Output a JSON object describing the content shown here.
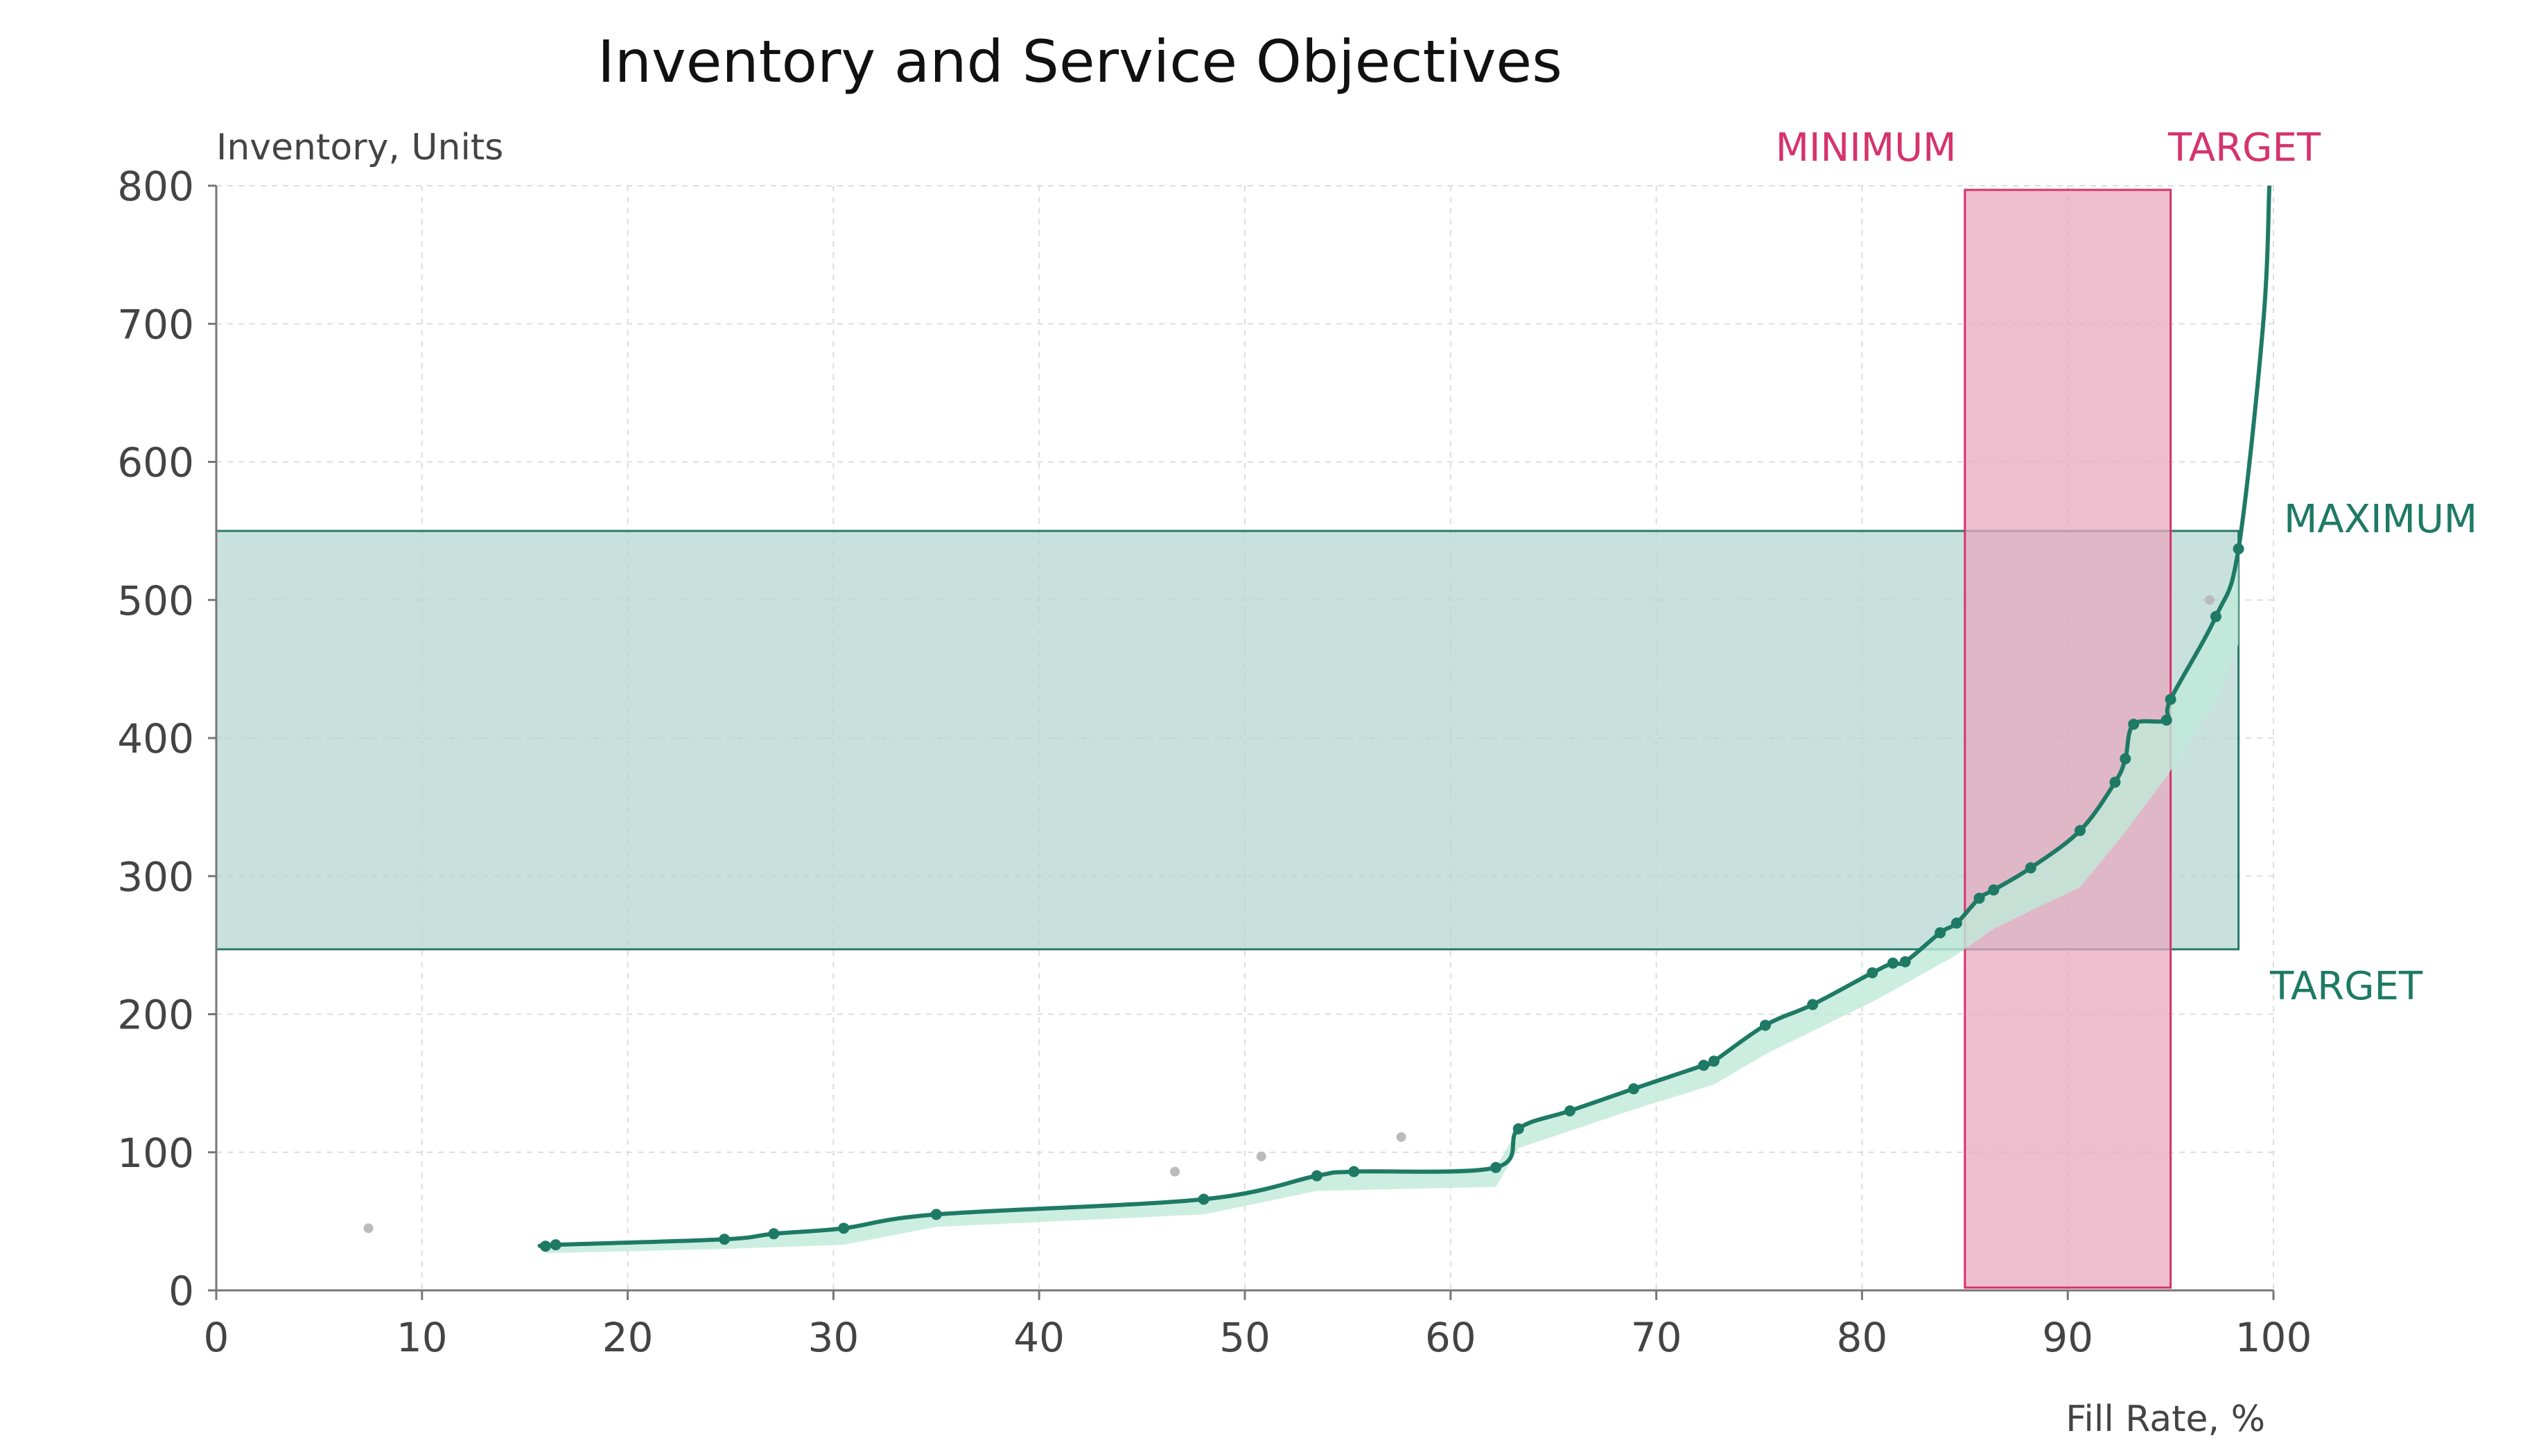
{
  "chart_data": {
    "type": "line",
    "title": "Inventory and Service Objectives",
    "xlabel": "Fill Rate, %",
    "ylabel": "Inventory, Units",
    "xlim": [
      0,
      100
    ],
    "ylim": [
      0,
      800
    ],
    "x_ticks": [
      0,
      10,
      20,
      30,
      40,
      50,
      60,
      70,
      80,
      90,
      100
    ],
    "y_ticks": [
      0,
      100,
      200,
      300,
      400,
      500,
      600,
      700,
      800
    ],
    "grid": true,
    "colors": {
      "line": "#1e7a64",
      "confidence_band": "#bfead9",
      "inventory_band_fill": "#b3d6d0",
      "inventory_band_stroke": "#2a7a6a",
      "fill_rate_band_fill": "#e8a8bf",
      "fill_rate_band_stroke": "#d6336c",
      "outliers": "#bbbbbb",
      "text_pink": "#d6336c",
      "text_teal": "#1e7a64"
    },
    "bands": {
      "fill_rate": {
        "min": 85,
        "target": 95,
        "min_label": "MINIMUM",
        "target_label": "TARGET"
      },
      "inventory": {
        "target": 247,
        "max": 550,
        "target_label": "TARGET",
        "max_label": "MAXIMUM"
      }
    },
    "series": [
      {
        "points": [
          [
            16.0,
            32
          ],
          [
            16.5,
            33
          ],
          [
            24.7,
            37
          ],
          [
            27.1,
            41
          ],
          [
            30.5,
            45
          ],
          [
            35.0,
            55
          ],
          [
            48.0,
            66
          ],
          [
            53.5,
            83
          ],
          [
            55.3,
            86
          ],
          [
            62.2,
            89
          ],
          [
            63.3,
            117
          ],
          [
            65.8,
            130
          ],
          [
            68.9,
            146
          ],
          [
            72.3,
            163
          ],
          [
            72.8,
            166
          ],
          [
            75.3,
            192
          ],
          [
            77.6,
            207
          ],
          [
            80.5,
            230
          ],
          [
            81.5,
            237
          ],
          [
            82.1,
            238
          ],
          [
            83.8,
            259
          ],
          [
            84.6,
            266
          ],
          [
            85.7,
            284
          ],
          [
            86.4,
            290
          ],
          [
            88.2,
            306
          ],
          [
            90.6,
            333
          ],
          [
            92.3,
            368
          ],
          [
            92.8,
            385
          ],
          [
            93.2,
            410
          ],
          [
            94.8,
            413
          ],
          [
            95.0,
            428
          ],
          [
            97.2,
            488
          ],
          [
            98.3,
            537
          ],
          [
            99.5,
            700
          ],
          [
            99.8,
            800
          ]
        ],
        "band_lower": [
          [
            16.0,
            27
          ],
          [
            24.7,
            30
          ],
          [
            30.5,
            33
          ],
          [
            35.0,
            46
          ],
          [
            48.0,
            55
          ],
          [
            53.5,
            72
          ],
          [
            62.2,
            75
          ],
          [
            63.3,
            103
          ],
          [
            68.9,
            131
          ],
          [
            72.8,
            149
          ],
          [
            75.3,
            171
          ],
          [
            80.5,
            209
          ],
          [
            82.1,
            222
          ],
          [
            84.6,
            243
          ],
          [
            86.4,
            262
          ],
          [
            90.6,
            292
          ],
          [
            92.8,
            332
          ],
          [
            94.8,
            372
          ],
          [
            97.2,
            427
          ],
          [
            98.3,
            468
          ]
        ]
      }
    ],
    "outliers": [
      [
        7.4,
        45
      ],
      [
        46.6,
        86
      ],
      [
        50.8,
        97
      ],
      [
        57.6,
        111
      ],
      [
        96.9,
        500
      ]
    ]
  }
}
